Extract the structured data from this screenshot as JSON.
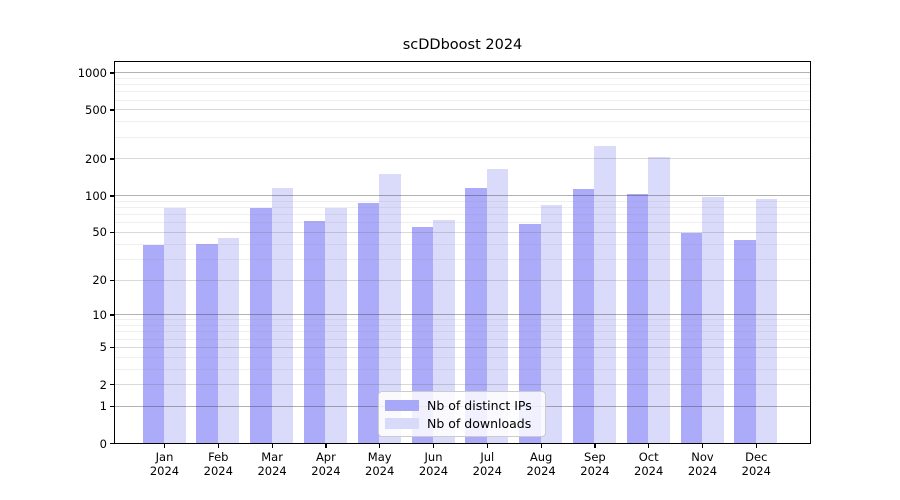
{
  "chart_data": {
    "type": "bar",
    "title": "scDDboost 2024",
    "categories": [
      "Jan",
      "Feb",
      "Mar",
      "Apr",
      "May",
      "Jun",
      "Jul",
      "Aug",
      "Sep",
      "Oct",
      "Nov",
      "Dec"
    ],
    "tick_year": "2024",
    "series": [
      {
        "name": "Nb of distinct IPs",
        "color": "#a8a8f9",
        "values": [
          39,
          40,
          79,
          61,
          87,
          55,
          114,
          58,
          112,
          103,
          49,
          43
        ]
      },
      {
        "name": "Nb of downloads",
        "color": "#d9d9fa",
        "values": [
          78,
          45,
          114,
          79,
          150,
          63,
          164,
          84,
          254,
          205,
          96,
          94
        ]
      }
    ],
    "xlabel": "",
    "ylabel": "",
    "y_ticks": [
      0,
      1,
      2,
      5,
      10,
      20,
      50,
      100,
      200,
      500,
      1000
    ],
    "y_mid_gridlines": [
      2,
      5,
      20,
      50,
      200,
      500
    ],
    "y_major_gridlines": [
      1,
      10,
      100,
      1000
    ],
    "y_minor_gridlines": [
      3,
      4,
      6,
      7,
      8,
      9,
      30,
      40,
      60,
      70,
      80,
      90,
      300,
      400,
      600,
      700,
      800,
      900
    ],
    "y_scale": "log1p",
    "ylim": [
      0,
      1230
    ],
    "grid": "horizontal major+minor, on",
    "legend_position": "lower center inside plot"
  }
}
